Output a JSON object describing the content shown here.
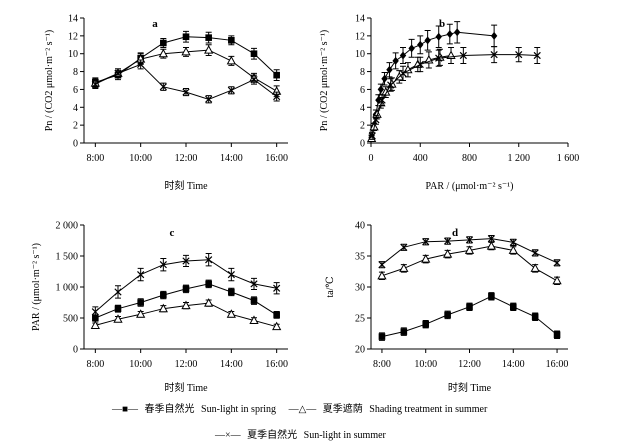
{
  "chart_data": [
    {
      "panel": "a",
      "type": "line",
      "title": "",
      "xlabel": "时刻 Time",
      "ylabel": "Pn / (CO2 μmol·m⁻² s⁻¹)",
      "x": [
        8,
        9,
        10,
        11,
        12,
        13,
        14,
        15,
        16
      ],
      "xlim": [
        7.5,
        16.5
      ],
      "xticks": [
        8,
        10,
        12,
        14,
        16
      ],
      "xtick_labels": [
        "8:00",
        "10:00",
        "12:00",
        "14:00",
        "16:00"
      ],
      "ylim": [
        0,
        14
      ],
      "yticks": [
        0,
        2,
        4,
        6,
        8,
        10,
        12,
        14
      ],
      "ytick_labels": [
        "0",
        "2",
        "4",
        "6",
        "8",
        "10",
        "12",
        "14"
      ],
      "series": [
        {
          "name": "Sun-light in spring",
          "marker": "square",
          "values": [
            6.8,
            7.6,
            9.5,
            11.2,
            11.9,
            11.8,
            11.5,
            10.0,
            7.6
          ],
          "err": [
            0.5,
            0.5,
            0.6,
            0.5,
            0.6,
            0.6,
            0.5,
            0.6,
            0.6
          ]
        },
        {
          "name": "Shading treatment in summer",
          "marker": "triangle",
          "values": [
            6.7,
            7.8,
            9.4,
            10.0,
            10.2,
            10.4,
            9.2,
            7.3,
            5.8
          ],
          "err": [
            0.5,
            0.5,
            0.6,
            0.5,
            0.5,
            0.6,
            0.5,
            0.5,
            0.6
          ]
        },
        {
          "name": "Sun-light in summer",
          "marker": "x",
          "values": [
            6.6,
            7.8,
            8.8,
            6.3,
            5.7,
            4.9,
            5.9,
            7.1,
            5.2
          ],
          "err": [
            0.5,
            0.5,
            0.5,
            0.4,
            0.4,
            0.4,
            0.4,
            0.5,
            0.5
          ]
        }
      ]
    },
    {
      "panel": "b",
      "type": "scatter",
      "title": "",
      "xlabel": "PAR / (μmol·m⁻² s⁻¹)",
      "ylabel": "Pn / (CO2 μmol·m⁻² s⁻¹)",
      "xlim": [
        0,
        1600
      ],
      "xticks": [
        0,
        400,
        800,
        1200,
        1600
      ],
      "xtick_labels": [
        "0",
        "400",
        "800",
        "1 200",
        "1 600"
      ],
      "ylim": [
        0,
        14
      ],
      "yticks": [
        0,
        2,
        4,
        6,
        8,
        10,
        12,
        14
      ],
      "ytick_labels": [
        "0",
        "2",
        "4",
        "6",
        "8",
        "10",
        "12",
        "14"
      ],
      "series": [
        {
          "name": "Sun-light in spring",
          "marker": "diamond",
          "x": [
            5,
            20,
            40,
            60,
            80,
            110,
            150,
            200,
            260,
            330,
            400,
            460,
            550,
            640,
            700,
            1000
          ],
          "y": [
            0.6,
            1.8,
            3.2,
            4.8,
            6.0,
            7.2,
            8.2,
            9.2,
            9.8,
            10.6,
            11.0,
            11.5,
            11.9,
            12.2,
            12.4,
            12.0
          ],
          "err": [
            0.3,
            0.4,
            0.5,
            0.6,
            0.6,
            0.7,
            0.8,
            0.9,
            0.9,
            1.0,
            1.0,
            1.1,
            1.2,
            1.1,
            1.2,
            1.2
          ]
        },
        {
          "name": "Shading treatment in summer",
          "marker": "triangle",
          "x": [
            5,
            25,
            50,
            80,
            120,
            170,
            230,
            300,
            380,
            470,
            560,
            650
          ],
          "y": [
            0.5,
            1.8,
            3.2,
            4.5,
            5.7,
            6.6,
            7.4,
            8.2,
            8.8,
            9.3,
            9.6,
            9.8
          ],
          "err": [
            0.3,
            0.4,
            0.5,
            0.6,
            0.6,
            0.7,
            0.7,
            0.8,
            0.8,
            0.9,
            0.9,
            0.9
          ]
        },
        {
          "name": "Sun-light in summer",
          "marker": "x",
          "x": [
            10,
            40,
            90,
            160,
            260,
            400,
            550,
            750,
            1000,
            1200,
            1350
          ],
          "y": [
            0.8,
            2.6,
            4.8,
            6.5,
            7.8,
            8.8,
            9.5,
            9.8,
            9.9,
            9.9,
            9.8
          ],
          "err": [
            0.4,
            0.5,
            0.6,
            0.7,
            0.8,
            0.8,
            0.9,
            0.9,
            0.9,
            0.8,
            0.9
          ]
        }
      ]
    },
    {
      "panel": "c",
      "type": "line",
      "title": "",
      "xlabel": "时刻 Time",
      "ylabel": "PAR / (μmol·m⁻² s⁻¹)",
      "x": [
        8,
        9,
        10,
        11,
        12,
        13,
        14,
        15,
        16
      ],
      "xlim": [
        7.5,
        16.5
      ],
      "xticks": [
        8,
        10,
        12,
        14,
        16
      ],
      "xtick_labels": [
        "8:00",
        "10:00",
        "12:00",
        "14:00",
        "16:00"
      ],
      "ylim": [
        0,
        2000
      ],
      "yticks": [
        0,
        500,
        1000,
        1500,
        2000
      ],
      "ytick_labels": [
        "0",
        "500",
        "1 000",
        "1 500",
        "2 000"
      ],
      "series": [
        {
          "name": "Sun-light in spring",
          "marker": "square",
          "values": [
            500,
            650,
            750,
            870,
            970,
            1050,
            920,
            780,
            550
          ],
          "err": [
            50,
            55,
            60,
            60,
            60,
            60,
            60,
            60,
            55
          ]
        },
        {
          "name": "Shading treatment in summer",
          "marker": "triangle",
          "values": [
            380,
            480,
            560,
            650,
            700,
            740,
            560,
            460,
            360
          ],
          "err": [
            40,
            45,
            45,
            50,
            50,
            50,
            45,
            45,
            40
          ]
        },
        {
          "name": "Sun-light in summer",
          "marker": "x",
          "values": [
            600,
            920,
            1200,
            1360,
            1420,
            1440,
            1200,
            1050,
            980
          ],
          "err": [
            80,
            100,
            100,
            100,
            90,
            100,
            100,
            90,
            90
          ]
        }
      ]
    },
    {
      "panel": "d",
      "type": "line",
      "title": "",
      "xlabel": "时刻 Time",
      "ylabel": "ta/℃",
      "x": [
        8,
        9,
        10,
        11,
        12,
        13,
        14,
        15,
        16
      ],
      "xlim": [
        7.5,
        16.5
      ],
      "xticks": [
        8,
        10,
        12,
        14,
        16
      ],
      "xtick_labels": [
        "8:00",
        "10:00",
        "12:00",
        "14:00",
        "16:00"
      ],
      "ylim": [
        20,
        40
      ],
      "yticks": [
        20,
        25,
        30,
        35,
        40
      ],
      "ytick_labels": [
        "20",
        "25",
        "30",
        "35",
        "40"
      ],
      "series": [
        {
          "name": "Sun-light in spring",
          "marker": "square",
          "values": [
            22.0,
            22.8,
            24.0,
            25.5,
            26.8,
            28.5,
            26.8,
            25.2,
            22.3
          ],
          "err": [
            0.6,
            0.6,
            0.6,
            0.6,
            0.6,
            0.6,
            0.6,
            0.6,
            0.6
          ]
        },
        {
          "name": "Shading treatment in summer",
          "marker": "triangle",
          "values": [
            31.8,
            33.0,
            34.5,
            35.3,
            35.9,
            36.6,
            35.9,
            33.0,
            31.0
          ],
          "err": [
            0.6,
            0.6,
            0.6,
            0.6,
            0.6,
            0.6,
            0.6,
            0.6,
            0.6
          ]
        },
        {
          "name": "Sun-light in summer",
          "marker": "x",
          "values": [
            33.6,
            36.4,
            37.3,
            37.4,
            37.6,
            37.8,
            37.2,
            35.5,
            33.9
          ],
          "err": [
            0.5,
            0.5,
            0.5,
            0.5,
            0.5,
            0.5,
            0.5,
            0.5,
            0.5
          ]
        }
      ]
    }
  ],
  "legend": {
    "spring": {
      "symbol": "—■—",
      "zh": "春季自然光",
      "en": "Sun-light in spring"
    },
    "shading": {
      "symbol": "—△—",
      "zh": "夏季遮荫",
      "en": "Shading treatment in summer"
    },
    "summer": {
      "symbol": "—×—",
      "zh": "夏季自然光",
      "en": "Sun-light in summer"
    }
  },
  "colors": {
    "ink": "#000000",
    "background": "#ffffff"
  }
}
